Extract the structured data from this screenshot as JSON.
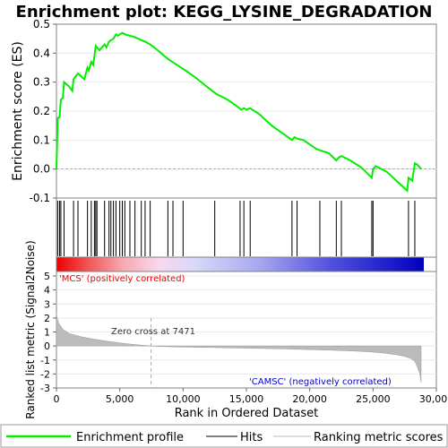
{
  "chart_data": {
    "type": "line",
    "title": "Enrichment plot: KEGG_LYSINE_DEGRADATION",
    "top_panel": {
      "ylabel": "Enrichment score (ES)",
      "ylim": [
        -0.1,
        0.5
      ],
      "yticks": [
        "-0.1",
        "0.0",
        "0.1",
        "0.2",
        "0.3",
        "0.4",
        "0.5"
      ],
      "ytick_values": [
        -0.1,
        0.0,
        0.1,
        0.2,
        0.3,
        0.4,
        0.5
      ],
      "series_color": "#00ee00",
      "es_curve": {
        "x": [
          0,
          100,
          250,
          350,
          500,
          600,
          1000,
          1250,
          1350,
          1700,
          2200,
          2450,
          2550,
          2750,
          2900,
          3000,
          3100,
          3200,
          3400,
          3800,
          3950,
          4150,
          4300,
          4500,
          4700,
          4850,
          5000,
          5200,
          5400,
          5800,
          6200,
          6700,
          7000,
          7400,
          8000,
          8800,
          9500,
          10200,
          11000,
          12000,
          12600,
          13500,
          14300,
          14600,
          14800,
          15000,
          15300,
          16000,
          17000,
          18600,
          18800,
          19000,
          19500,
          20500,
          20800,
          21500,
          22100,
          22300,
          22500,
          23200,
          24100,
          24900,
          25000,
          25200,
          26100,
          27700,
          27800,
          28100,
          28300,
          28500,
          28800
        ],
        "y": [
          0.0,
          0.175,
          0.18,
          0.24,
          0.245,
          0.3,
          0.285,
          0.27,
          0.31,
          0.33,
          0.31,
          0.35,
          0.34,
          0.37,
          0.36,
          0.39,
          0.425,
          0.42,
          0.41,
          0.43,
          0.42,
          0.44,
          0.445,
          0.45,
          0.465,
          0.46,
          0.465,
          0.47,
          0.465,
          0.46,
          0.455,
          0.445,
          0.44,
          0.43,
          0.41,
          0.38,
          0.36,
          0.34,
          0.315,
          0.28,
          0.26,
          0.24,
          0.215,
          0.205,
          0.21,
          0.205,
          0.21,
          0.19,
          0.15,
          0.1,
          0.11,
          0.105,
          0.1,
          0.07,
          0.065,
          0.055,
          0.03,
          0.04,
          0.045,
          0.03,
          0.005,
          -0.03,
          0.0,
          0.01,
          -0.01,
          -0.075,
          -0.03,
          -0.04,
          0.02,
          0.015,
          0.0
        ]
      },
      "hits": [
        100,
        250,
        350,
        600,
        1350,
        1700,
        2450,
        2750,
        3000,
        3100,
        3200,
        3800,
        4150,
        4300,
        4500,
        4700,
        5000,
        5200,
        5400,
        5800,
        6200,
        6700,
        7000,
        7400,
        8800,
        9200,
        10000,
        12500,
        14500,
        14800,
        15300,
        18600,
        19000,
        20800,
        22100,
        22500,
        24900,
        25000,
        27800,
        28300
      ]
    },
    "bottom_panel": {
      "ylabel": "Ranked list metric (Signal2Noise)",
      "xlabel": "Rank in Ordered Dataset",
      "ylim": [
        -3,
        5
      ],
      "yticks": [
        "-3",
        "-2",
        "-1",
        "0",
        "1",
        "2",
        "3",
        "4",
        "5"
      ],
      "ytick_values": [
        -3,
        -2,
        -1,
        0,
        1,
        2,
        3,
        4,
        5
      ],
      "xlim": [
        0,
        30000
      ],
      "xticks": [
        "0",
        "5,000",
        "10,000",
        "15,000",
        "20,000",
        "25,000",
        "30,000"
      ],
      "xtick_values": [
        0,
        5000,
        10000,
        15000,
        20000,
        25000,
        30000
      ],
      "metric_curve": {
        "x": [
          0,
          50,
          200,
          500,
          1000,
          2000,
          3000,
          4000,
          5000,
          6000,
          7000,
          7471,
          8000,
          10000,
          12000,
          15000,
          18000,
          20000,
          22000,
          24000,
          25000,
          26000,
          27000,
          27500,
          28000,
          28300,
          28500,
          28700,
          28800
        ],
        "y": [
          2.4,
          2.0,
          1.6,
          1.2,
          0.9,
          0.65,
          0.48,
          0.34,
          0.22,
          0.12,
          0.04,
          0.0,
          -0.03,
          -0.08,
          -0.11,
          -0.16,
          -0.21,
          -0.26,
          -0.31,
          -0.38,
          -0.44,
          -0.52,
          -0.65,
          -0.75,
          -0.9,
          -1.1,
          -1.5,
          -2.0,
          -2.6
        ]
      },
      "zero_cross_label": "Zero cross at 7471",
      "zero_cross": 7471,
      "pos_label": "'MCS' (positively correlated)",
      "neg_label": "'CAMSC' (negatively correlated)",
      "pos_color": "#ee0000",
      "neg_color": "#0000cc"
    },
    "legend": {
      "placement": "bottom",
      "items": [
        "Enrichment profile",
        "Hits",
        "Ranking metric scores"
      ]
    }
  }
}
